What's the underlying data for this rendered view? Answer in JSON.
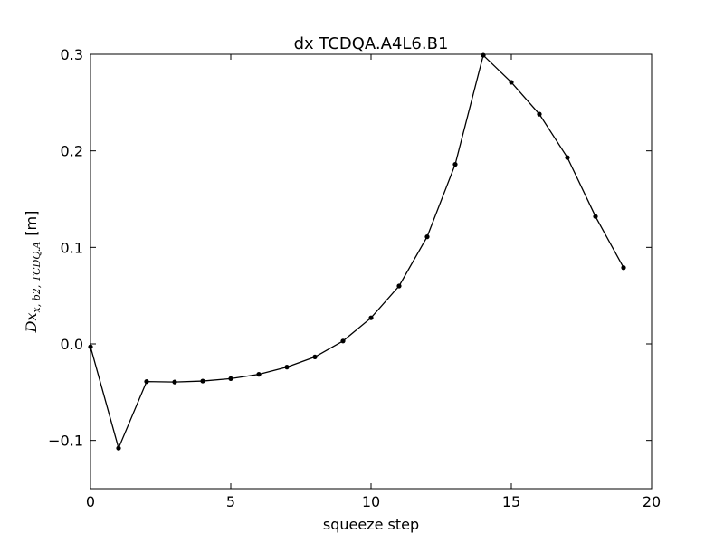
{
  "chart_data": {
    "type": "line",
    "title": "dx TCDQA.A4L6.B1",
    "xlabel": "squeeze step",
    "ylabel_base": "Dx",
    "ylabel_sub": "x, b2, TCDQ.A",
    "ylabel_unit": "[m]",
    "xlim": [
      0,
      20
    ],
    "ylim": [
      -0.15,
      0.3
    ],
    "x_ticks": [
      0,
      5,
      10,
      15,
      20
    ],
    "x_tick_labels": [
      "0",
      "5",
      "10",
      "15",
      "20"
    ],
    "y_ticks": [
      -0.1,
      0.0,
      0.1,
      0.2,
      0.3
    ],
    "y_tick_labels": [
      "−0.1",
      "0.0",
      "0.1",
      "0.2",
      "0.3"
    ],
    "grid": false,
    "series": [
      {
        "color": "#000000",
        "x": [
          0,
          1,
          2,
          3,
          4,
          5,
          6,
          7,
          8,
          9,
          10,
          11,
          12,
          13,
          14,
          15,
          16,
          17,
          18,
          19
        ],
        "y": [
          -0.003,
          -0.108,
          -0.039,
          -0.0395,
          -0.0385,
          -0.036,
          -0.0315,
          -0.024,
          -0.0135,
          0.003,
          0.027,
          0.06,
          0.111,
          0.186,
          0.299,
          0.271,
          0.238,
          0.193,
          0.132,
          0.079
        ]
      }
    ]
  }
}
